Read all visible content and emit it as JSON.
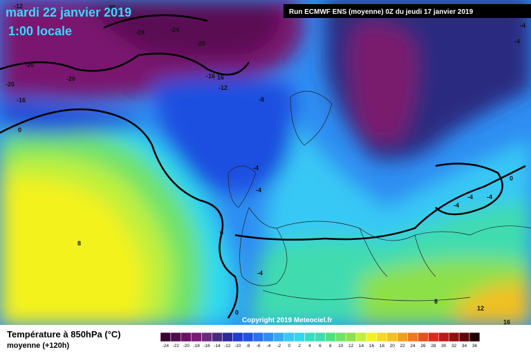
{
  "header": {
    "date": "mardi 22 janvier 2019",
    "time": "1:00 locale",
    "run": "Run ECMWF ENS (moyenne) 0Z du jeudi 17 janvier 2019"
  },
  "map_labels": [
    "-12",
    "-28",
    "-28",
    "-24",
    "-20",
    "-20",
    "-20",
    "-20",
    "-16",
    "-16",
    "16",
    "-12",
    "-8",
    "0",
    "-4",
    "-4",
    "0",
    "8",
    "-4",
    "0",
    "8",
    "12",
    "16",
    "-4",
    "-4",
    "-4",
    "0",
    "-4",
    "-4"
  ],
  "footer": {
    "copyright": "Copyright 2019 Meteociel.fr"
  },
  "legend": {
    "title": "Température à 850hPa (°C)",
    "subtitle": "moyenne  (+120h)",
    "values": [
      -24,
      -22,
      -20,
      -18,
      -16,
      -14,
      -12,
      -10,
      -8,
      -6,
      -4,
      -2,
      0,
      2,
      4,
      6,
      8,
      10,
      12,
      14,
      16,
      18,
      20,
      22,
      24,
      26,
      28,
      30,
      32,
      34,
      36
    ],
    "colors": [
      "#3a0034",
      "#52084c",
      "#6a1264",
      "#7a1a74",
      "#6a2a7e",
      "#4a2a7e",
      "#2a2a9a",
      "#1e3cd0",
      "#2050e8",
      "#2a70f0",
      "#2f8df2",
      "#35aaf4",
      "#38c8f5",
      "#2ed9ee",
      "#30e0c0",
      "#3fdcb0",
      "#50e080",
      "#6ee26a",
      "#8ee04a",
      "#bff03a",
      "#f4f21c",
      "#f8d820",
      "#f2c020",
      "#f0a020",
      "#f07820",
      "#e85020",
      "#e02820",
      "#c01818",
      "#901010",
      "#600808",
      "#200000"
    ]
  }
}
